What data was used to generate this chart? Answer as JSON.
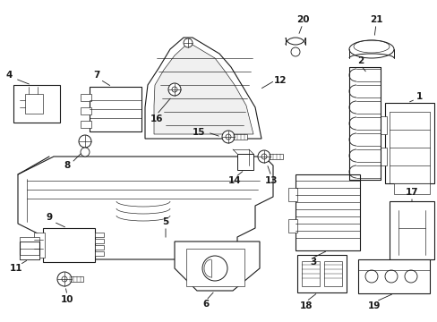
{
  "bg_color": "#ffffff",
  "fig_width": 4.89,
  "fig_height": 3.6,
  "dpi": 100,
  "black": "#1a1a1a",
  "lw_main": 0.8,
  "lw_thin": 0.45,
  "label_fontsize": 7.5
}
